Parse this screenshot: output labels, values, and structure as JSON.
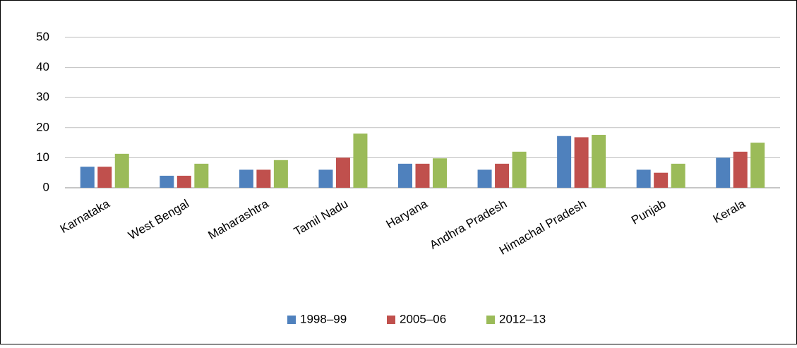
{
  "chart_data": {
    "type": "bar",
    "categories": [
      "Karnataka",
      "West Bengal",
      "Maharashtra",
      "Tamil Nadu",
      "Haryana",
      "Andhra Pradesh",
      "Himachal Pradesh",
      "Punjab",
      "Kerala"
    ],
    "series": [
      {
        "name": "1998–99",
        "color": "#4f81bd",
        "values": [
          7,
          4,
          6,
          6,
          8,
          6,
          17.2,
          6,
          10
        ]
      },
      {
        "name": "2005–06",
        "color": "#c0504d",
        "values": [
          7,
          4,
          6,
          10,
          8,
          8,
          16.8,
          5,
          12
        ]
      },
      {
        "name": "2012–13",
        "color": "#9bbb59",
        "values": [
          11.3,
          8,
          9.2,
          18,
          9.8,
          12,
          17.6,
          8,
          15
        ]
      }
    ],
    "ylim": [
      0,
      50
    ],
    "yticks": [
      0,
      10,
      20,
      30,
      40,
      50
    ],
    "grid": true,
    "legend": "bottom"
  }
}
